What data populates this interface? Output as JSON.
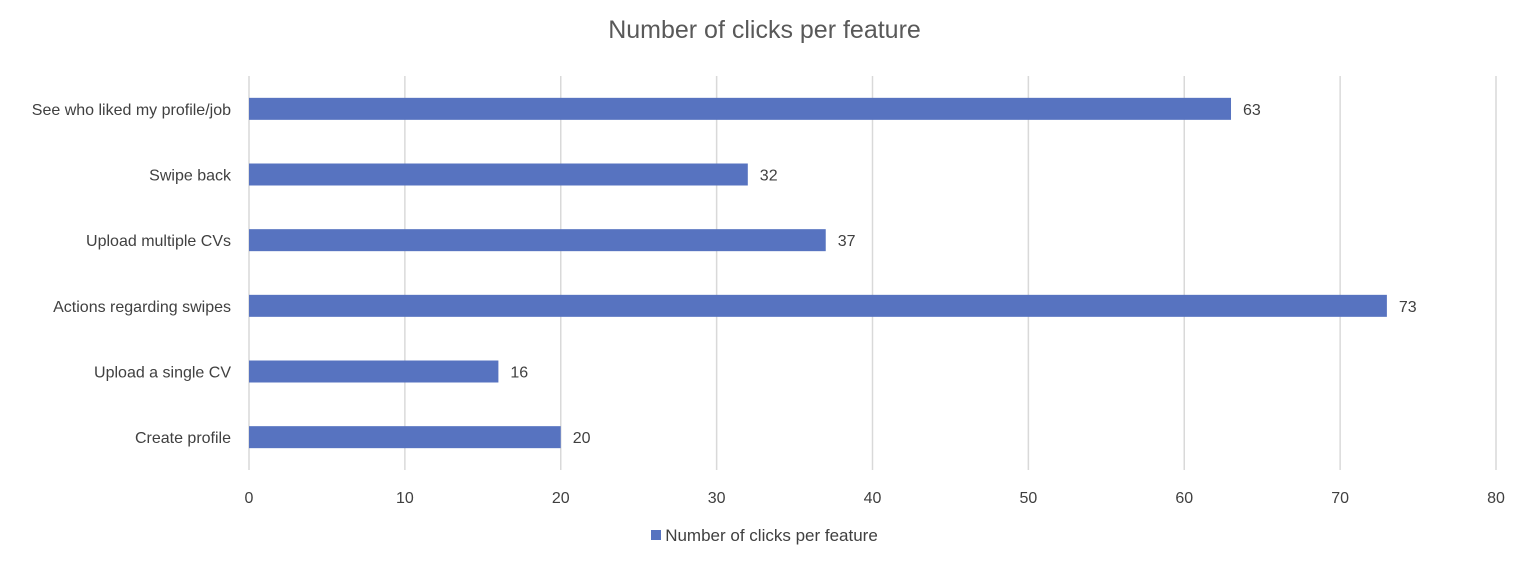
{
  "chart_data": {
    "type": "bar",
    "orientation": "horizontal",
    "title": "Number of clicks per feature",
    "categories": [
      "See who liked my profile/job",
      "Swipe back",
      "Upload multiple CVs",
      "Actions regarding swipes",
      "Upload a single CV",
      "Create profile"
    ],
    "series": [
      {
        "name": "Number of clicks per feature",
        "values": [
          63,
          32,
          37,
          73,
          16,
          20
        ],
        "color": "#5773C0"
      }
    ],
    "xlim": [
      0,
      80
    ],
    "xticks": [
      0,
      10,
      20,
      30,
      40,
      50,
      60,
      70,
      80
    ],
    "grid": true,
    "data_labels": true,
    "legend": "bottom"
  }
}
